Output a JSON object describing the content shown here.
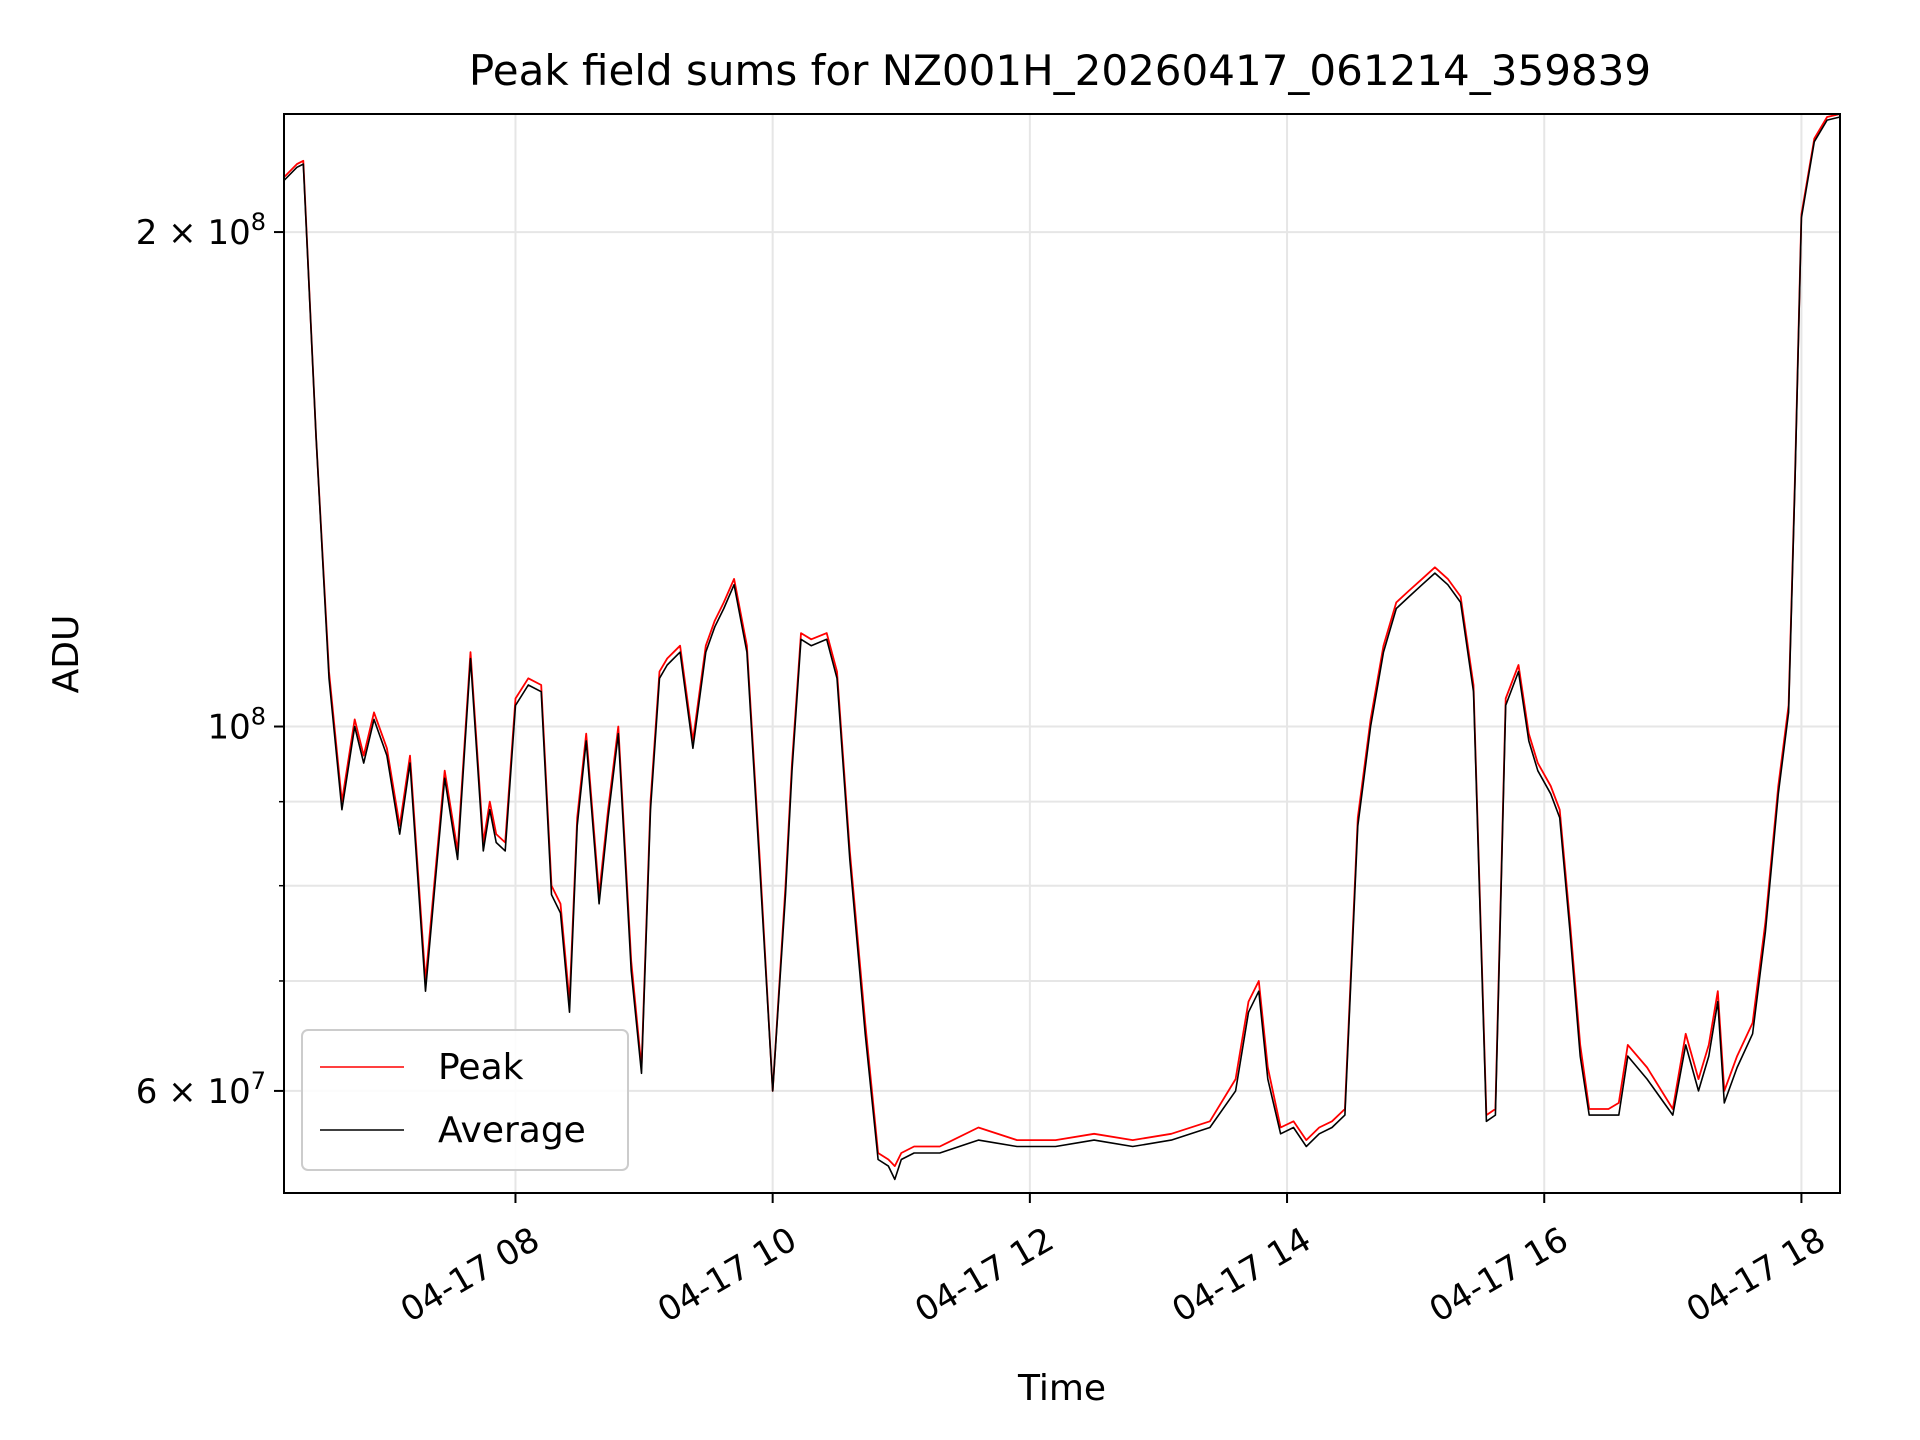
{
  "chart_data": {
    "type": "line",
    "title": "Peak field sums for NZ001H_20260417_061214_359839",
    "xlabel": "Time",
    "ylabel": "ADU",
    "yscale": "log",
    "xlim": [
      6.2,
      18.3
    ],
    "ylim": [
      52000000,
      236000000
    ],
    "grid": true,
    "legend_position": "lower-left",
    "x_tick_values": [
      8,
      10,
      12,
      14,
      16,
      18
    ],
    "x_tick_labels": [
      "04-17 08",
      "04-17 10",
      "04-17 12",
      "04-17 14",
      "04-17 16",
      "04-17 18"
    ],
    "y_major_ticks": [
      {
        "value": 60000000,
        "mantissa": "6",
        "exp": "7"
      },
      {
        "value": 100000000,
        "mantissa": "",
        "exp": "8"
      },
      {
        "value": 200000000,
        "mantissa": "2",
        "exp": "8"
      }
    ],
    "y_minor_gridlines": [
      70000000,
      80000000,
      90000000
    ],
    "series": [
      {
        "name": "Peak",
        "color": "#ff0000",
        "x": [
          6.2,
          6.3,
          6.35,
          6.45,
          6.55,
          6.65,
          6.75,
          6.82,
          6.9,
          7.0,
          7.1,
          7.18,
          7.3,
          7.38,
          7.45,
          7.55,
          7.65,
          7.75,
          7.8,
          7.85,
          7.92,
          8.0,
          8.1,
          8.2,
          8.28,
          8.35,
          8.42,
          8.48,
          8.55,
          8.65,
          8.72,
          8.8,
          8.9,
          8.98,
          9.05,
          9.12,
          9.18,
          9.28,
          9.38,
          9.48,
          9.55,
          9.62,
          9.7,
          9.8,
          9.9,
          10.0,
          10.1,
          10.15,
          10.22,
          10.3,
          10.42,
          10.5,
          10.6,
          10.72,
          10.82,
          10.9,
          10.95,
          11.0,
          11.1,
          11.3,
          11.6,
          11.9,
          12.2,
          12.5,
          12.8,
          13.1,
          13.4,
          13.6,
          13.7,
          13.78,
          13.85,
          13.95,
          14.05,
          14.15,
          14.25,
          14.35,
          14.45,
          14.55,
          14.65,
          14.75,
          14.85,
          14.95,
          15.05,
          15.15,
          15.25,
          15.35,
          15.45,
          15.55,
          15.62,
          15.7,
          15.8,
          15.88,
          15.95,
          16.05,
          16.12,
          16.2,
          16.28,
          16.35,
          16.42,
          16.5,
          16.58,
          16.65,
          16.8,
          17.0,
          17.1,
          17.2,
          17.28,
          17.35,
          17.4,
          17.5,
          17.62,
          17.72,
          17.82,
          17.9,
          17.95,
          18.0,
          18.1,
          18.2,
          18.3
        ],
        "values": [
          216000000,
          220000000,
          221000000,
          150000000,
          108000000,
          90000000,
          101000000,
          96000000,
          102000000,
          97000000,
          87000000,
          96000000,
          70000000,
          82000000,
          94000000,
          84000000,
          111000000,
          85000000,
          90000000,
          86000000,
          85000000,
          104000000,
          107000000,
          106000000,
          80000000,
          78000000,
          68000000,
          88000000,
          99000000,
          79000000,
          89000000,
          100000000,
          72000000,
          62000000,
          90000000,
          108000000,
          110000000,
          112000000,
          98000000,
          112000000,
          116000000,
          119000000,
          123000000,
          112000000,
          83000000,
          60000000,
          80000000,
          95000000,
          114000000,
          113000000,
          114000000,
          108000000,
          84000000,
          66000000,
          55000000,
          54500000,
          54000000,
          55000000,
          55500000,
          55500000,
          57000000,
          56000000,
          56000000,
          56500000,
          56000000,
          56500000,
          57500000,
          61000000,
          68000000,
          70000000,
          62000000,
          57000000,
          57500000,
          56000000,
          57000000,
          57500000,
          58500000,
          88000000,
          101000000,
          112000000,
          119000000,
          121000000,
          123000000,
          125000000,
          123000000,
          120000000,
          106000000,
          58000000,
          58500000,
          104000000,
          109000000,
          99000000,
          95000000,
          92000000,
          89000000,
          76000000,
          64000000,
          58500000,
          58500000,
          58500000,
          59000000,
          64000000,
          62000000,
          58500000,
          65000000,
          61000000,
          64000000,
          69000000,
          60000000,
          63000000,
          66000000,
          76000000,
          92000000,
          103000000,
          142000000,
          205000000,
          228000000,
          235000000,
          236000000
        ]
      },
      {
        "name": "Average",
        "color": "#000000",
        "x": [
          6.2,
          6.3,
          6.35,
          6.45,
          6.55,
          6.65,
          6.75,
          6.82,
          6.9,
          7.0,
          7.1,
          7.18,
          7.3,
          7.38,
          7.45,
          7.55,
          7.65,
          7.75,
          7.8,
          7.85,
          7.92,
          8.0,
          8.1,
          8.2,
          8.28,
          8.35,
          8.42,
          8.48,
          8.55,
          8.65,
          8.72,
          8.8,
          8.9,
          8.98,
          9.05,
          9.12,
          9.18,
          9.28,
          9.38,
          9.48,
          9.55,
          9.62,
          9.7,
          9.8,
          9.9,
          10.0,
          10.1,
          10.15,
          10.22,
          10.3,
          10.42,
          10.5,
          10.6,
          10.72,
          10.82,
          10.9,
          10.95,
          11.0,
          11.1,
          11.3,
          11.6,
          11.9,
          12.2,
          12.5,
          12.8,
          13.1,
          13.4,
          13.6,
          13.7,
          13.78,
          13.85,
          13.95,
          14.05,
          14.15,
          14.25,
          14.35,
          14.45,
          14.55,
          14.65,
          14.75,
          14.85,
          14.95,
          15.05,
          15.15,
          15.25,
          15.35,
          15.45,
          15.55,
          15.62,
          15.7,
          15.8,
          15.88,
          15.95,
          16.05,
          16.12,
          16.2,
          16.28,
          16.35,
          16.42,
          16.5,
          16.58,
          16.65,
          16.8,
          17.0,
          17.1,
          17.2,
          17.28,
          17.35,
          17.4,
          17.5,
          17.62,
          17.72,
          17.82,
          17.9,
          17.95,
          18.0,
          18.1,
          18.2,
          18.3
        ],
        "values": [
          215000000,
          219000000,
          220000000,
          150000000,
          107000000,
          89000000,
          100000000,
          95000000,
          101000000,
          96000000,
          86000000,
          95000000,
          69000000,
          81000000,
          93000000,
          83000000,
          110000000,
          84000000,
          89000000,
          85000000,
          84000000,
          103000000,
          106000000,
          105000000,
          79000000,
          77000000,
          67000000,
          87000000,
          98000000,
          78000000,
          88000000,
          99000000,
          71000000,
          61500000,
          89000000,
          107000000,
          109000000,
          111000000,
          97000000,
          111000000,
          115000000,
          118000000,
          122000000,
          111000000,
          82000000,
          60000000,
          79000000,
          94000000,
          113000000,
          112000000,
          113000000,
          107000000,
          83000000,
          65000000,
          54500000,
          54000000,
          53000000,
          54500000,
          55000000,
          55000000,
          56000000,
          55500000,
          55500000,
          56000000,
          55500000,
          56000000,
          57000000,
          60000000,
          67000000,
          69000000,
          61000000,
          56500000,
          57000000,
          55500000,
          56500000,
          57000000,
          58000000,
          87000000,
          100000000,
          111000000,
          118000000,
          120000000,
          122000000,
          124000000,
          122000000,
          119000000,
          105000000,
          57500000,
          58000000,
          103000000,
          108000000,
          98000000,
          94000000,
          91000000,
          88000000,
          75000000,
          63000000,
          58000000,
          58000000,
          58000000,
          58000000,
          63000000,
          61000000,
          58000000,
          64000000,
          60000000,
          63000000,
          68000000,
          59000000,
          62000000,
          65000000,
          75000000,
          91000000,
          102000000,
          141000000,
          204000000,
          227000000,
          234000000,
          235000000
        ]
      }
    ]
  }
}
